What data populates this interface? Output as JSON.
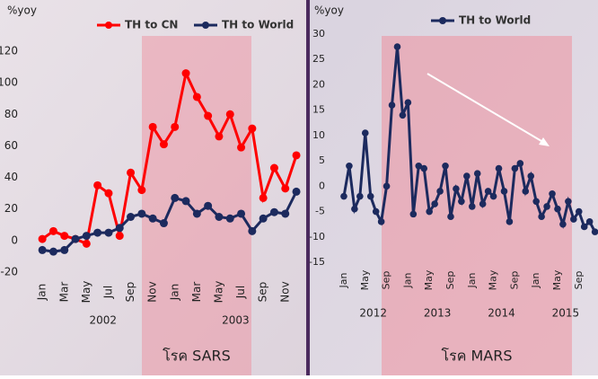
{
  "chart_data": [
    {
      "type": "line",
      "y_label": "%yoy",
      "categories": [
        "Jan",
        null,
        "Mar",
        null,
        "May",
        null,
        "Jul",
        null,
        "Sep",
        null,
        "Nov",
        null,
        "Jan",
        null,
        "Mar",
        null,
        "May",
        null,
        "Jul",
        null,
        "Sep",
        null,
        "Nov",
        null
      ],
      "year_labels": [
        "2002",
        "2003"
      ],
      "series": [
        {
          "name": "TH to CN",
          "color": "#ff0000",
          "values": [
            1,
            6,
            3,
            1,
            -2,
            35,
            30,
            3,
            43,
            32,
            72,
            61,
            72,
            106,
            91,
            79,
            66,
            80,
            59,
            71,
            27,
            46,
            33,
            54
          ]
        },
        {
          "name": "TH to World",
          "color": "#1c2a5e",
          "values": [
            -6,
            -7,
            -6,
            1,
            3,
            5,
            5,
            8,
            15,
            17,
            14,
            11,
            27,
            25,
            17,
            22,
            15,
            14,
            17,
            6,
            14,
            18,
            17,
            31
          ]
        }
      ],
      "ylim": [
        -20,
        120
      ],
      "yticks": [
        -20,
        0,
        20,
        40,
        60,
        80,
        100,
        120
      ],
      "annotation": "โรค SARS"
    },
    {
      "type": "line",
      "y_label": "%yoy",
      "categories": [
        "Jan",
        null,
        null,
        null,
        "May",
        null,
        null,
        null,
        "Sep",
        null,
        null,
        null,
        "Jan",
        null,
        null,
        null,
        "May",
        null,
        null,
        null,
        "Sep",
        null,
        null,
        null,
        "Jan",
        null,
        null,
        null,
        "May",
        null,
        null,
        null,
        "Sep",
        null,
        null,
        null,
        "Jan",
        null,
        null,
        null,
        "May",
        null,
        null,
        null,
        "Sep",
        null,
        null,
        null
      ],
      "year_labels": [
        "2012",
        "2013",
        "2014",
        "2015"
      ],
      "series": [
        {
          "name": "TH to World",
          "color": "#1c2a5e",
          "values": [
            -2,
            4,
            -4.5,
            -2,
            10.5,
            -2,
            -5,
            -7,
            0,
            16,
            27.5,
            14,
            16.5,
            -5.5,
            4,
            3.5,
            -5,
            -3.5,
            -1,
            4,
            -6,
            -0.5,
            -3,
            2,
            -4,
            2.5,
            -3.5,
            -1,
            -2,
            3.5,
            -1,
            -7,
            3.5,
            4.5,
            -1,
            2,
            -3,
            -6,
            -4,
            -1.5,
            -4.5,
            -7.5,
            -3,
            -6.5,
            -5,
            -8,
            -7,
            -9
          ]
        }
      ],
      "ylim": [
        -15,
        30
      ],
      "yticks": [
        -15,
        -10,
        -5,
        0,
        5,
        10,
        15,
        20,
        25,
        30
      ],
      "annotation": "โรค MARS"
    }
  ]
}
